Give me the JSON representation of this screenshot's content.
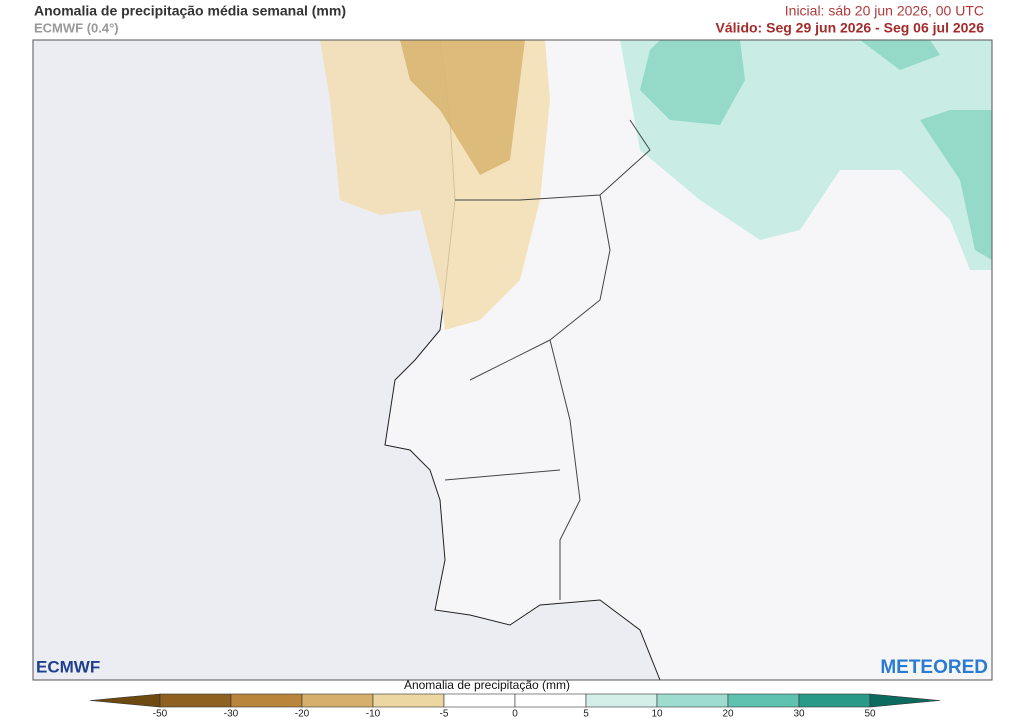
{
  "header": {
    "title": "Anomalia de precipitação média semanal (mm)",
    "model": "ECMWF (0.4°)",
    "initial": "Inicial:  sáb 20 jun 2026, 00 UTC",
    "valid": "Válido: Seg 29 jun 2026 - Seg 06 jul 2026"
  },
  "logos": {
    "left": "ECMWF",
    "right": "METEORED"
  },
  "colorbar": {
    "label": "Anomalia de precipitação (mm)",
    "ticks": [
      -50,
      -30,
      -20,
      -10,
      -5,
      0,
      5,
      10,
      20,
      30,
      50
    ],
    "colors": [
      "#6e4a10",
      "#8f6120",
      "#b8853a",
      "#d6b06a",
      "#ecd6a2",
      "#ffffff",
      "#ffffff",
      "#d3efe8",
      "#9edcd0",
      "#5fc2b0",
      "#2a9a88",
      "#0b6b5e"
    ]
  }
}
